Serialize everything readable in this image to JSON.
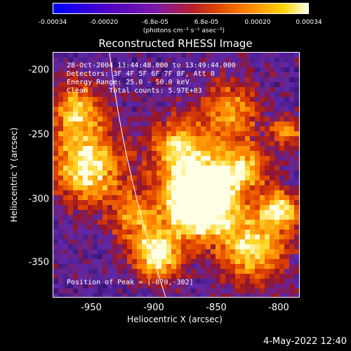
{
  "colorbar": {
    "ticks": [
      "-0.00034",
      "-0.00020",
      "-6.8e-05",
      "6.8e-05",
      "0.00020",
      "0.00034"
    ],
    "unit": "(photons cm⁻² s⁻¹ asec⁻²)",
    "colors": [
      "#0000ff",
      "#4b00c8",
      "#7c1aa8",
      "#b8202a",
      "#e04a00",
      "#ff8c00",
      "#ffd400",
      "#ffffe8"
    ]
  },
  "title": "Reconstructed RHESSI Image",
  "info": {
    "time": "28-Oct-2004 13:44:48.000 to 13:49:44.000",
    "detectors": "Detectors: 3F 4F 5F 6F 7F 8F, Att 0",
    "energy": "Energy Range: 25.0 - 50.0 keV",
    "clean": "Clean     Total counts: 5.97E+03",
    "peak": "Position of Peak = [-870,-302]"
  },
  "axes": {
    "xlabel": "Heliocentric X (arcsec)",
    "ylabel": "Heliocentric Y (arcsec)",
    "xticks": [
      "-950",
      "-900",
      "-850",
      "-800"
    ],
    "yticks": [
      "-200",
      "-250",
      "-300",
      "-350"
    ]
  },
  "timestamp": "4-May-2022 12:40"
}
